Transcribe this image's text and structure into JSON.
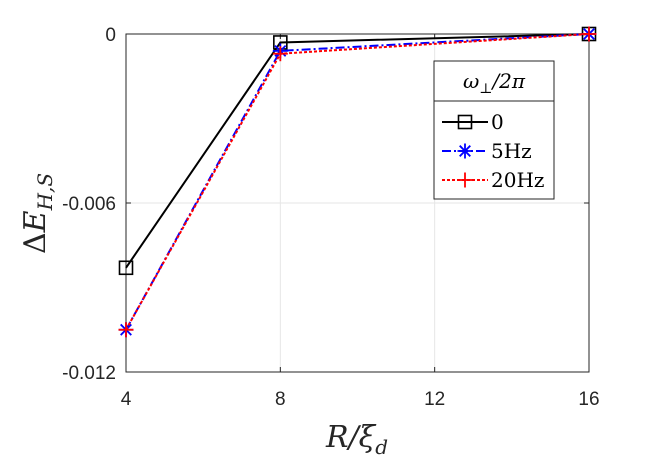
{
  "chart_data": {
    "type": "line",
    "x": [
      4,
      8,
      12,
      16
    ],
    "x_ticks": [
      "4",
      "8",
      "12",
      "16"
    ],
    "y_ticks": [
      "0",
      "-0.006",
      "-0.012"
    ],
    "y_tick_values": [
      0,
      -0.006,
      -0.012
    ],
    "xlim": [
      4,
      16
    ],
    "ylim": [
      -0.012,
      0
    ],
    "xlabel": "R/ξ_d",
    "ylabel": "ΔE_{H,S}",
    "grid": true,
    "legend": {
      "title": "ω⊥/2π",
      "placement": "top-right"
    },
    "series": [
      {
        "name": "0",
        "x": [
          4,
          8,
          16
        ],
        "values": [
          -0.0083,
          -0.0003,
          0.0
        ],
        "color": "#000000",
        "marker": "square",
        "line": "solid"
      },
      {
        "name": "5Hz",
        "x": [
          4,
          8,
          16
        ],
        "values": [
          -0.0105,
          -0.0006,
          0.0
        ],
        "color": "#0000ff",
        "marker": "asterisk",
        "line": "dashdot"
      },
      {
        "name": "20Hz",
        "x": [
          4,
          8,
          16
        ],
        "values": [
          -0.0105,
          -0.0007,
          0.0
        ],
        "color": "#ff0000",
        "marker": "plus",
        "line": "dotted"
      }
    ]
  }
}
